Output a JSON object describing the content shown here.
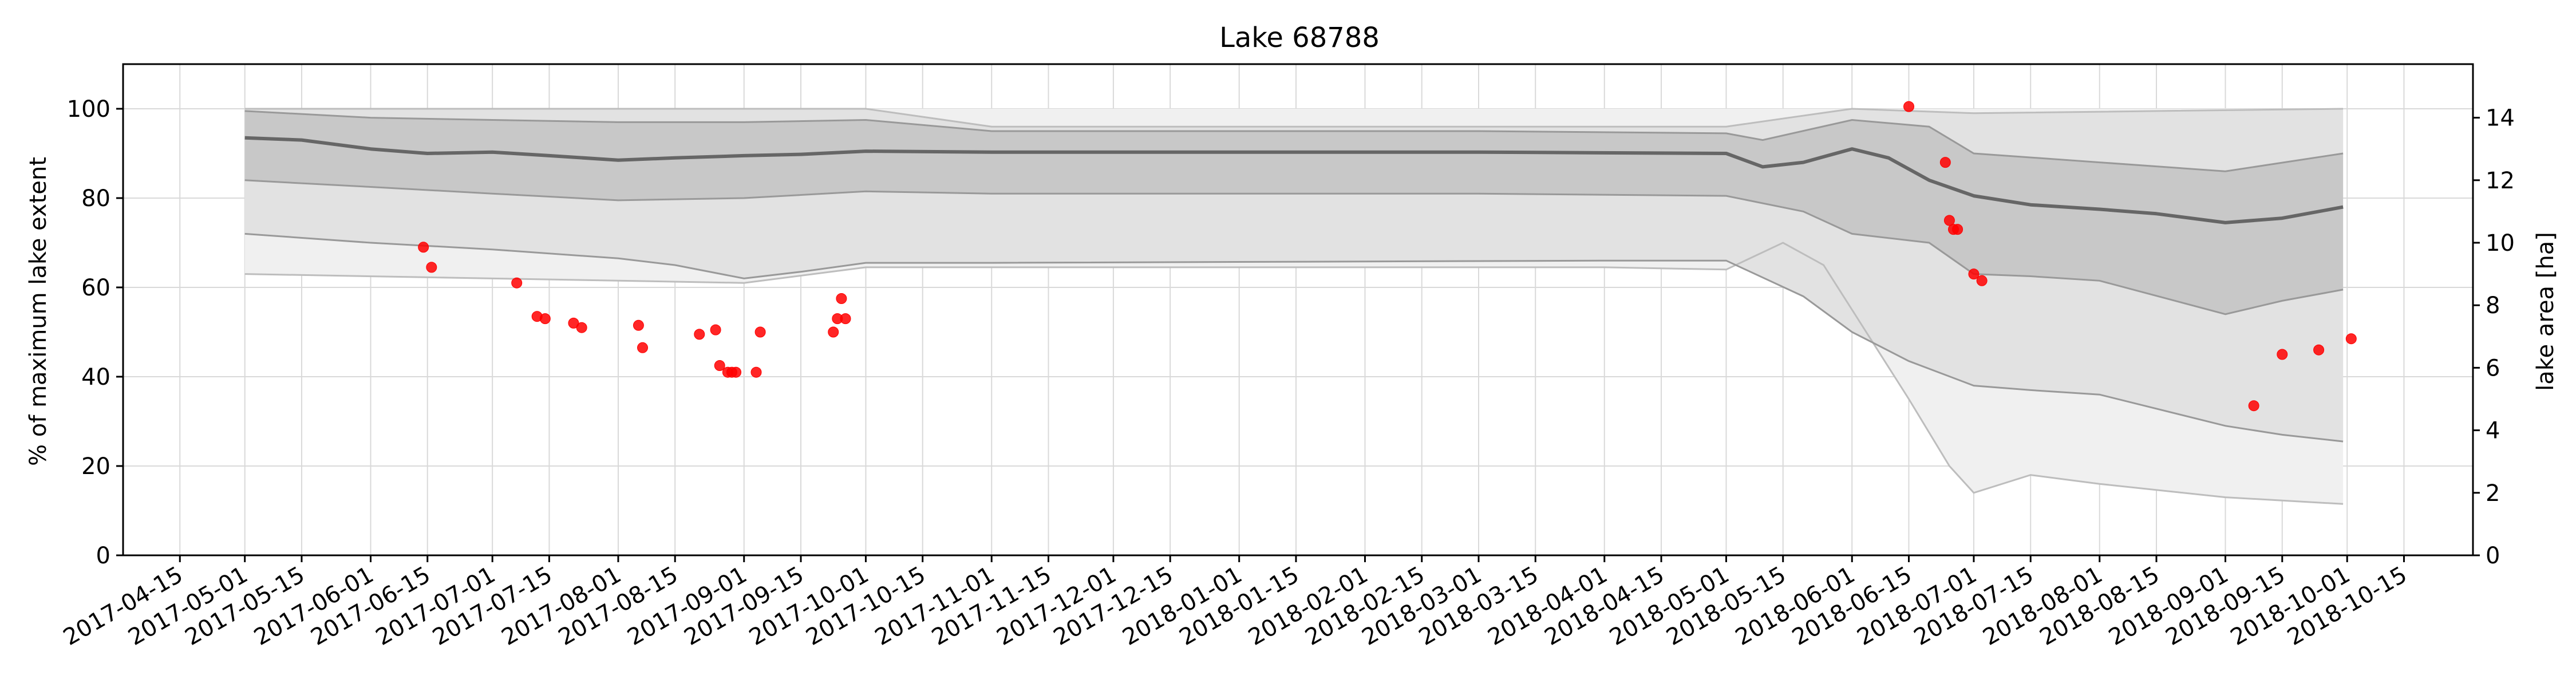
{
  "chart_data": {
    "type": "line",
    "title": "Lake 68788",
    "ylabel": "% of maximum lake extent",
    "y2label": "lake area [ha]",
    "ylim": [
      0,
      110
    ],
    "y2lim": [
      0,
      15.714
    ],
    "grid": true,
    "legend": "none",
    "x_range": [
      "2017-04-01",
      "2018-11-01"
    ],
    "xticks": [
      "2017-04-15",
      "2017-05-01",
      "2017-05-15",
      "2017-06-01",
      "2017-06-15",
      "2017-07-01",
      "2017-07-15",
      "2017-08-01",
      "2017-08-15",
      "2017-09-01",
      "2017-09-15",
      "2017-10-01",
      "2017-10-15",
      "2017-11-01",
      "2017-11-15",
      "2017-12-01",
      "2017-12-15",
      "2018-01-01",
      "2018-01-15",
      "2018-02-01",
      "2018-02-15",
      "2018-03-01",
      "2018-03-15",
      "2018-04-01",
      "2018-04-15",
      "2018-05-01",
      "2018-05-15",
      "2018-06-01",
      "2018-06-15",
      "2018-07-01",
      "2018-07-15",
      "2018-08-01",
      "2018-08-15",
      "2018-09-01",
      "2018-09-15",
      "2018-10-01",
      "2018-10-15"
    ],
    "yticks": [
      0,
      20,
      40,
      60,
      80,
      100
    ],
    "y2ticks": [
      0,
      2,
      4,
      6,
      8,
      10,
      12,
      14
    ],
    "colors": {
      "median": "#666666",
      "band_inner": "#c8c8c8",
      "band_mid": "#e2e2e2",
      "band_outer": "#f0f0f0",
      "band_edge": "#999999",
      "outer_edge": "#bdbdbd",
      "points": "#ff0000",
      "grid": "#d9d9d9"
    },
    "series": [
      {
        "role": "median",
        "x": [
          "2017-05-01",
          "2017-05-15",
          "2017-06-01",
          "2017-06-15",
          "2017-07-01",
          "2017-07-15",
          "2017-08-01",
          "2017-08-15",
          "2017-09-01",
          "2017-09-15",
          "2017-10-01",
          "2017-11-01",
          "2018-01-01",
          "2018-03-01",
          "2018-05-01",
          "2018-05-10",
          "2018-05-20",
          "2018-06-01",
          "2018-06-10",
          "2018-06-20",
          "2018-07-01",
          "2018-07-15",
          "2018-08-01",
          "2018-08-15",
          "2018-09-01",
          "2018-09-15",
          "2018-09-30"
        ],
        "y": [
          93.5,
          93.0,
          91.0,
          90.0,
          90.3,
          89.5,
          88.5,
          89.0,
          89.5,
          89.8,
          90.5,
          90.3,
          90.3,
          90.3,
          90.0,
          87.0,
          88.0,
          91.0,
          89.0,
          84.0,
          80.5,
          78.5,
          77.5,
          76.5,
          74.5,
          75.5,
          78.0
        ]
      },
      {
        "role": "inner-upper",
        "x": [
          "2017-05-01",
          "2017-06-01",
          "2017-07-01",
          "2017-08-01",
          "2017-09-01",
          "2017-10-01",
          "2017-11-01",
          "2018-03-01",
          "2018-05-01",
          "2018-05-10",
          "2018-06-01",
          "2018-06-20",
          "2018-07-01",
          "2018-08-01",
          "2018-09-01",
          "2018-09-30"
        ],
        "y": [
          99.5,
          98.0,
          97.5,
          97.0,
          97.0,
          97.5,
          95.0,
          95.0,
          94.5,
          93.0,
          97.5,
          96.0,
          90.0,
          88.0,
          86.0,
          90.0
        ]
      },
      {
        "role": "inner-lower",
        "x": [
          "2017-05-01",
          "2017-06-01",
          "2017-07-01",
          "2017-08-01",
          "2017-09-01",
          "2017-10-01",
          "2017-11-01",
          "2018-03-01",
          "2018-05-01",
          "2018-05-20",
          "2018-06-01",
          "2018-06-20",
          "2018-07-01",
          "2018-07-15",
          "2018-08-01",
          "2018-09-01",
          "2018-09-15",
          "2018-09-30"
        ],
        "y": [
          84.0,
          82.5,
          81.0,
          79.5,
          80.0,
          81.5,
          81.0,
          81.0,
          80.5,
          77.0,
          72.0,
          70.0,
          63.0,
          62.5,
          61.5,
          54.0,
          57.0,
          59.5
        ]
      },
      {
        "role": "mid-upper",
        "x": [
          "2017-05-01",
          "2017-10-01",
          "2017-11-01",
          "2018-05-01",
          "2018-06-01",
          "2018-07-01",
          "2018-09-30"
        ],
        "y": [
          100.0,
          100.0,
          96.0,
          96.0,
          100.0,
          99.0,
          100.0
        ]
      },
      {
        "role": "mid-lower",
        "x": [
          "2017-05-01",
          "2017-06-01",
          "2017-07-01",
          "2017-08-01",
          "2017-08-15",
          "2017-09-01",
          "2017-09-15",
          "2017-10-01",
          "2017-11-01",
          "2018-04-01",
          "2018-05-01",
          "2018-05-20",
          "2018-06-01",
          "2018-06-15",
          "2018-07-01",
          "2018-07-15",
          "2018-08-01",
          "2018-09-01",
          "2018-09-15",
          "2018-09-30"
        ],
        "y": [
          72.0,
          70.0,
          68.5,
          66.5,
          65.0,
          62.0,
          63.5,
          65.5,
          65.5,
          66.0,
          66.0,
          58.0,
          50.0,
          43.5,
          38.0,
          37.0,
          36.0,
          29.0,
          27.0,
          25.5
        ]
      },
      {
        "role": "outer-upper",
        "x": [
          "2017-05-01",
          "2017-10-01",
          "2018-06-01",
          "2018-09-30"
        ],
        "y": [
          100.0,
          100.0,
          100.0,
          100.0
        ]
      },
      {
        "role": "outer-lower",
        "x": [
          "2017-05-01",
          "2017-07-01",
          "2017-09-01",
          "2017-10-01",
          "2018-04-01",
          "2018-05-01",
          "2018-05-15",
          "2018-05-25",
          "2018-06-01",
          "2018-06-15",
          "2018-06-25",
          "2018-07-01",
          "2018-07-15",
          "2018-08-01",
          "2018-09-01",
          "2018-09-30"
        ],
        "y": [
          63.0,
          62.0,
          61.0,
          64.5,
          64.5,
          64.0,
          70.0,
          65.0,
          55.0,
          35.0,
          20.0,
          14.0,
          18.0,
          16.0,
          13.0,
          11.5
        ]
      },
      {
        "role": "observations",
        "x": [
          "2017-06-14",
          "2017-06-16",
          "2017-07-07",
          "2017-07-12",
          "2017-07-14",
          "2017-07-21",
          "2017-07-23",
          "2017-08-06",
          "2017-08-07",
          "2017-08-21",
          "2017-08-25",
          "2017-08-26",
          "2017-08-28",
          "2017-08-29",
          "2017-08-30",
          "2017-09-04",
          "2017-09-05",
          "2017-09-23",
          "2017-09-24",
          "2017-09-25",
          "2017-09-26",
          "2018-06-15",
          "2018-06-24",
          "2018-06-25",
          "2018-06-26",
          "2018-06-27",
          "2018-07-01",
          "2018-07-03",
          "2018-09-08",
          "2018-09-15",
          "2018-09-24",
          "2018-10-02"
        ],
        "y": [
          69.0,
          64.5,
          61.0,
          53.5,
          53.0,
          52.0,
          51.0,
          51.5,
          46.5,
          49.5,
          50.5,
          42.5,
          41.0,
          41.0,
          41.0,
          41.0,
          50.0,
          50.0,
          53.0,
          57.5,
          53.0,
          100.5,
          88.0,
          75.0,
          73.0,
          73.0,
          63.0,
          61.5,
          33.5,
          45.0,
          46.0,
          48.5
        ]
      }
    ]
  }
}
